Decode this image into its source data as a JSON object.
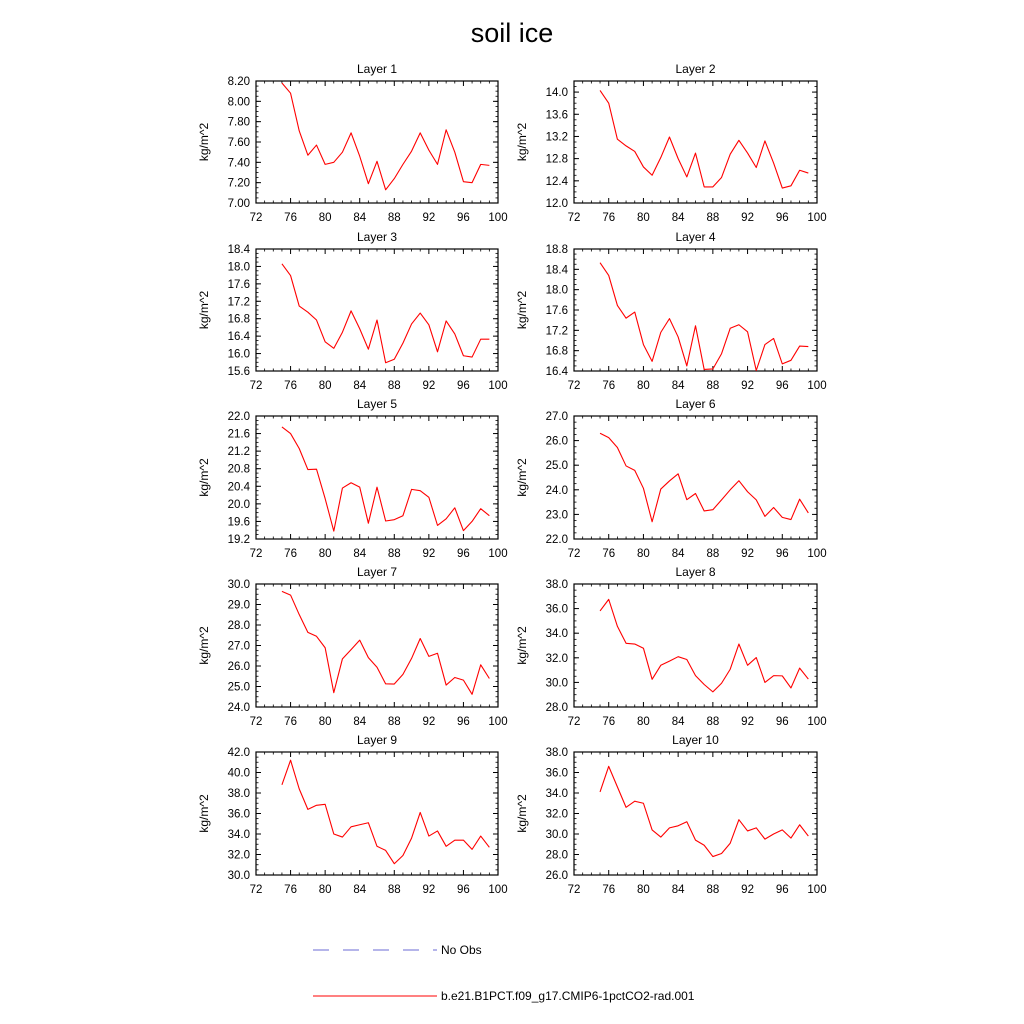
{
  "title": "soil ice",
  "legend": [
    {
      "label": "No Obs",
      "color": "#6b6bd6",
      "style": "dashed"
    },
    {
      "label": "b.e21.B1PCT.f09_g17.CMIP6-1pctCO2-rad.001",
      "color": "#ff0000",
      "style": "solid"
    }
  ],
  "chart_data": [
    {
      "type": "line",
      "title": "Layer 1",
      "ylabel": "kg/m^2",
      "xlim": [
        72,
        100
      ],
      "xticks": [
        "72",
        "76",
        "80",
        "84",
        "88",
        "92",
        "96",
        "100"
      ],
      "ylim": [
        7.0,
        8.2
      ],
      "yticks": [
        "7.00",
        "7.20",
        "7.40",
        "7.60",
        "7.80",
        "8.00",
        "8.20"
      ],
      "series": [
        {
          "color": "#ff0000",
          "x": [
            75,
            76,
            77,
            78,
            79,
            80,
            81,
            82,
            83,
            84,
            85,
            86,
            87,
            88,
            89,
            90,
            91,
            92,
            93,
            94,
            95,
            96,
            97,
            98,
            99
          ],
          "values": [
            8.18,
            8.08,
            7.71,
            7.47,
            7.57,
            7.38,
            7.4,
            7.5,
            7.69,
            7.46,
            7.19,
            7.41,
            7.13,
            7.24,
            7.38,
            7.51,
            7.69,
            7.52,
            7.38,
            7.72,
            7.5,
            7.21,
            7.2,
            7.38,
            7.37
          ]
        }
      ]
    },
    {
      "type": "line",
      "title": "Layer 2",
      "ylabel": "kg/m^2",
      "xlim": [
        72,
        100
      ],
      "xticks": [
        "72",
        "76",
        "80",
        "84",
        "88",
        "92",
        "96",
        "100"
      ],
      "ylim": [
        12.0,
        14.2
      ],
      "yticks": [
        "12.0",
        "12.4",
        "12.8",
        "13.2",
        "13.6",
        "14.0"
      ],
      "series": [
        {
          "color": "#ff0000",
          "x": [
            75,
            76,
            77,
            78,
            79,
            80,
            81,
            82,
            83,
            84,
            85,
            86,
            87,
            88,
            89,
            90,
            91,
            92,
            93,
            94,
            95,
            96,
            97,
            98,
            99
          ],
          "values": [
            14.03,
            13.8,
            13.15,
            13.03,
            12.93,
            12.65,
            12.5,
            12.82,
            13.19,
            12.8,
            12.47,
            12.9,
            12.29,
            12.29,
            12.46,
            12.88,
            13.13,
            12.9,
            12.64,
            13.12,
            12.72,
            12.27,
            12.31,
            12.59,
            12.54
          ]
        }
      ]
    },
    {
      "type": "line",
      "title": "Layer 3",
      "ylabel": "kg/m^2",
      "xlim": [
        72,
        100
      ],
      "xticks": [
        "72",
        "76",
        "80",
        "84",
        "88",
        "92",
        "96",
        "100"
      ],
      "ylim": [
        15.6,
        18.4
      ],
      "yticks": [
        "15.6",
        "16.0",
        "16.4",
        "16.8",
        "17.2",
        "17.6",
        "18.0",
        "18.4"
      ],
      "series": [
        {
          "color": "#ff0000",
          "x": [
            75,
            76,
            77,
            78,
            79,
            80,
            81,
            82,
            83,
            84,
            85,
            86,
            87,
            88,
            89,
            90,
            91,
            92,
            93,
            94,
            95,
            96,
            97,
            98,
            99
          ],
          "values": [
            18.06,
            17.79,
            17.09,
            16.95,
            16.77,
            16.27,
            16.12,
            16.49,
            16.98,
            16.57,
            16.1,
            16.77,
            15.79,
            15.87,
            16.24,
            16.68,
            16.93,
            16.66,
            16.04,
            16.75,
            16.45,
            15.95,
            15.92,
            16.33,
            16.33
          ]
        }
      ]
    },
    {
      "type": "line",
      "title": "Layer 4",
      "ylabel": "kg/m^2",
      "xlim": [
        72,
        100
      ],
      "xticks": [
        "72",
        "76",
        "80",
        "84",
        "88",
        "92",
        "96",
        "100"
      ],
      "ylim": [
        16.4,
        18.8
      ],
      "yticks": [
        "16.4",
        "16.8",
        "17.2",
        "17.6",
        "18.0",
        "18.4",
        "18.8"
      ],
      "series": [
        {
          "color": "#ff0000",
          "x": [
            75,
            76,
            77,
            78,
            79,
            80,
            81,
            82,
            83,
            84,
            85,
            86,
            87,
            88,
            89,
            90,
            91,
            92,
            93,
            94,
            95,
            96,
            97,
            98,
            99
          ],
          "values": [
            18.53,
            18.28,
            17.69,
            17.44,
            17.56,
            16.92,
            16.59,
            17.16,
            17.43,
            17.07,
            16.5,
            17.29,
            16.43,
            16.44,
            16.74,
            17.24,
            17.31,
            17.17,
            16.41,
            16.92,
            17.04,
            16.54,
            16.61,
            16.89,
            16.88
          ]
        }
      ]
    },
    {
      "type": "line",
      "title": "Layer 5",
      "ylabel": "kg/m^2",
      "xlim": [
        72,
        100
      ],
      "xticks": [
        "72",
        "76",
        "80",
        "84",
        "88",
        "92",
        "96",
        "100"
      ],
      "ylim": [
        19.2,
        22.0
      ],
      "yticks": [
        "19.2",
        "19.6",
        "20.0",
        "20.4",
        "20.8",
        "21.2",
        "21.6",
        "22.0"
      ],
      "series": [
        {
          "color": "#ff0000",
          "x": [
            75,
            76,
            77,
            78,
            79,
            80,
            81,
            82,
            83,
            84,
            85,
            86,
            87,
            88,
            89,
            90,
            91,
            92,
            93,
            94,
            95,
            96,
            97,
            98,
            99
          ],
          "values": [
            21.75,
            21.6,
            21.26,
            20.78,
            20.79,
            20.12,
            19.38,
            20.36,
            20.48,
            20.38,
            19.56,
            20.38,
            19.61,
            19.64,
            19.73,
            20.33,
            20.3,
            20.15,
            19.51,
            19.66,
            19.91,
            19.39,
            19.6,
            19.89,
            19.73
          ]
        }
      ]
    },
    {
      "type": "line",
      "title": "Layer 6",
      "ylabel": "kg/m^2",
      "xlim": [
        72,
        100
      ],
      "xticks": [
        "72",
        "76",
        "80",
        "84",
        "88",
        "92",
        "96",
        "100"
      ],
      "ylim": [
        22.0,
        27.0
      ],
      "yticks": [
        "22.0",
        "23.0",
        "24.0",
        "25.0",
        "26.0",
        "27.0"
      ],
      "series": [
        {
          "color": "#ff0000",
          "x": [
            75,
            76,
            77,
            78,
            79,
            80,
            81,
            82,
            83,
            84,
            85,
            86,
            87,
            88,
            89,
            90,
            91,
            92,
            93,
            94,
            95,
            96,
            97,
            98,
            99
          ],
          "values": [
            26.3,
            26.12,
            25.72,
            24.97,
            24.79,
            24.06,
            22.7,
            24.03,
            24.36,
            24.65,
            23.6,
            23.85,
            23.14,
            23.19,
            23.59,
            24.0,
            24.37,
            23.92,
            23.59,
            22.92,
            23.28,
            22.88,
            22.79,
            23.62,
            23.06
          ]
        }
      ]
    },
    {
      "type": "line",
      "title": "Layer 7",
      "ylabel": "kg/m^2",
      "xlim": [
        72,
        100
      ],
      "xticks": [
        "72",
        "76",
        "80",
        "84",
        "88",
        "92",
        "96",
        "100"
      ],
      "ylim": [
        24.0,
        30.0
      ],
      "yticks": [
        "24.0",
        "25.0",
        "26.0",
        "27.0",
        "28.0",
        "29.0",
        "30.0"
      ],
      "series": [
        {
          "color": "#ff0000",
          "x": [
            75,
            76,
            77,
            78,
            79,
            80,
            81,
            82,
            83,
            84,
            85,
            86,
            87,
            88,
            89,
            90,
            91,
            92,
            93,
            94,
            95,
            96,
            97,
            98,
            99
          ],
          "values": [
            29.64,
            29.46,
            28.51,
            27.64,
            27.45,
            26.89,
            24.7,
            26.35,
            26.8,
            27.26,
            26.41,
            25.94,
            25.13,
            25.12,
            25.59,
            26.37,
            27.34,
            26.47,
            26.62,
            25.07,
            25.44,
            25.31,
            24.62,
            26.06,
            25.39
          ]
        }
      ]
    },
    {
      "type": "line",
      "title": "Layer 8",
      "ylabel": "kg/m^2",
      "xlim": [
        72,
        100
      ],
      "xticks": [
        "72",
        "76",
        "80",
        "84",
        "88",
        "92",
        "96",
        "100"
      ],
      "ylim": [
        28.0,
        38.0
      ],
      "yticks": [
        "28.0",
        "30.0",
        "32.0",
        "34.0",
        "36.0",
        "38.0"
      ],
      "series": [
        {
          "color": "#ff0000",
          "x": [
            75,
            76,
            77,
            78,
            79,
            80,
            81,
            82,
            83,
            84,
            85,
            86,
            87,
            88,
            89,
            90,
            91,
            92,
            93,
            94,
            95,
            96,
            97,
            98,
            99
          ],
          "values": [
            35.81,
            36.75,
            34.56,
            33.18,
            33.12,
            32.78,
            30.25,
            31.39,
            31.73,
            32.09,
            31.86,
            30.55,
            29.83,
            29.23,
            29.93,
            31.07,
            33.12,
            31.39,
            32.02,
            30.0,
            30.55,
            30.53,
            29.55,
            31.16,
            30.27
          ]
        }
      ]
    },
    {
      "type": "line",
      "title": "Layer 9",
      "ylabel": "kg/m^2",
      "xlim": [
        72,
        100
      ],
      "xticks": [
        "72",
        "76",
        "80",
        "84",
        "88",
        "92",
        "96",
        "100"
      ],
      "ylim": [
        30.0,
        42.0
      ],
      "yticks": [
        "30.0",
        "32.0",
        "34.0",
        "36.0",
        "38.0",
        "40.0",
        "42.0"
      ],
      "series": [
        {
          "color": "#ff0000",
          "x": [
            75,
            76,
            77,
            78,
            79,
            80,
            81,
            82,
            83,
            84,
            85,
            86,
            87,
            88,
            89,
            90,
            91,
            92,
            93,
            94,
            95,
            96,
            97,
            98,
            99
          ],
          "values": [
            38.8,
            41.2,
            38.4,
            36.4,
            36.8,
            36.9,
            34.0,
            33.7,
            34.7,
            34.9,
            35.1,
            32.8,
            32.4,
            31.1,
            31.9,
            33.6,
            36.1,
            33.8,
            34.3,
            32.8,
            33.4,
            33.4,
            32.5,
            33.8,
            32.7
          ]
        }
      ]
    },
    {
      "type": "line",
      "title": "Layer 10",
      "ylabel": "kg/m^2",
      "xlim": [
        72,
        100
      ],
      "xticks": [
        "72",
        "76",
        "80",
        "84",
        "88",
        "92",
        "96",
        "100"
      ],
      "ylim": [
        26.0,
        38.0
      ],
      "yticks": [
        "26.0",
        "28.0",
        "30.0",
        "32.0",
        "34.0",
        "36.0",
        "38.0"
      ],
      "series": [
        {
          "color": "#ff0000",
          "x": [
            75,
            76,
            77,
            78,
            79,
            80,
            81,
            82,
            83,
            84,
            85,
            86,
            87,
            88,
            89,
            90,
            91,
            92,
            93,
            94,
            95,
            96,
            97,
            98,
            99
          ],
          "values": [
            34.1,
            36.6,
            34.6,
            32.6,
            33.2,
            33.0,
            30.4,
            29.7,
            30.6,
            30.8,
            31.2,
            29.4,
            28.9,
            27.8,
            28.1,
            29.1,
            31.4,
            30.3,
            30.6,
            29.5,
            30.0,
            30.4,
            29.6,
            30.9,
            29.8
          ]
        }
      ]
    }
  ]
}
